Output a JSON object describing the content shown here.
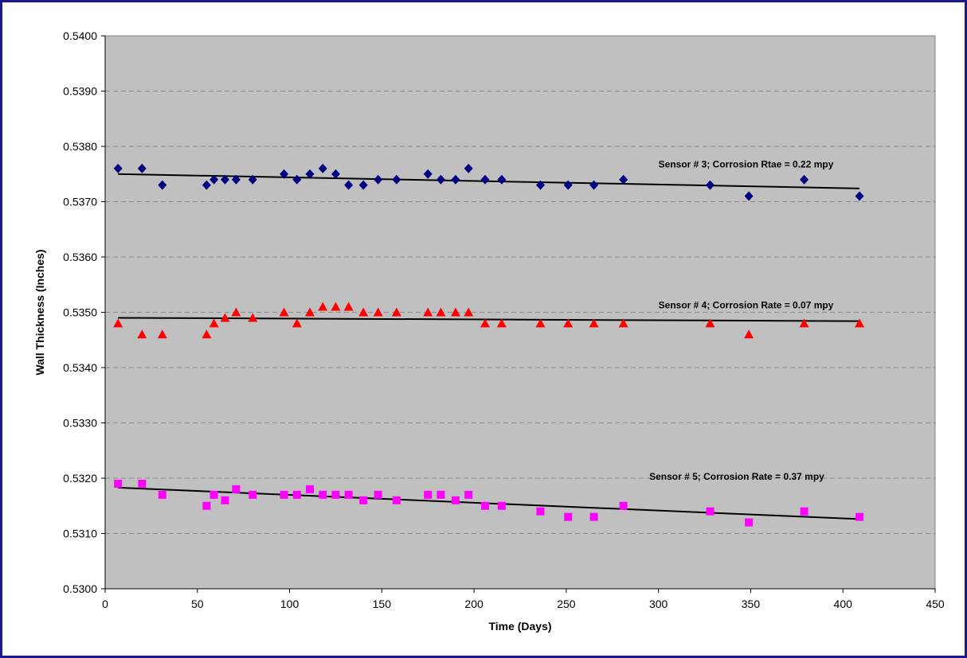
{
  "chart_data": {
    "type": "scatter",
    "title": "",
    "xlabel": "Time (Days)",
    "ylabel": "Wall Thickness (Inches)",
    "xlim": [
      0,
      450
    ],
    "ylim": [
      0.53,
      0.54
    ],
    "x_ticks": [
      "0",
      "50",
      "100",
      "150",
      "200",
      "250",
      "300",
      "350",
      "400",
      "450"
    ],
    "y_ticks": [
      "0.5300",
      "0.5310",
      "0.5320",
      "0.5330",
      "0.5340",
      "0.5350",
      "0.5360",
      "0.5370",
      "0.5380",
      "0.5390",
      "0.5400"
    ],
    "grid": "horizontal dashed",
    "legend": "none",
    "plot_background": "#c0c0c0",
    "x": [
      7,
      20,
      31,
      55,
      59,
      65,
      71,
      80,
      97,
      104,
      111,
      118,
      125,
      132,
      140,
      148,
      158,
      175,
      182,
      190,
      197,
      206,
      215,
      236,
      251,
      265,
      281,
      328,
      349,
      379,
      409
    ],
    "series": [
      {
        "label": "Sensor # 3; Corrosion Rtae = 0.22 mpy",
        "color": "#000080",
        "marker": "diamond",
        "values": [
          0.5376,
          0.5376,
          0.5373,
          0.5373,
          0.5374,
          0.5374,
          0.5374,
          0.5374,
          0.5375,
          0.5374,
          0.5375,
          0.5376,
          0.5375,
          0.5373,
          0.5373,
          0.5374,
          0.5374,
          0.5375,
          0.5374,
          0.5374,
          0.5376,
          0.5374,
          0.5374,
          0.5373,
          0.5373,
          0.5373,
          0.5374,
          0.5373,
          0.5371,
          0.5374,
          0.5371
        ],
        "trend": {
          "x": [
            7,
            409
          ],
          "y": [
            0.5375,
            0.53724
          ]
        }
      },
      {
        "label": "Sensor # 4; Corrosion Rate = 0.07 mpy",
        "color": "#ff0000",
        "marker": "triangle",
        "values": [
          0.5348,
          0.5346,
          0.5346,
          0.5346,
          0.5348,
          0.5349,
          0.535,
          0.5349,
          0.535,
          0.5348,
          0.535,
          0.5351,
          0.5351,
          0.5351,
          0.535,
          0.535,
          0.535,
          0.535,
          0.535,
          0.535,
          0.535,
          0.5348,
          0.5348,
          0.5348,
          0.5348,
          0.5348,
          0.5348,
          0.5348,
          0.5346,
          0.5348,
          0.5348
        ],
        "trend": {
          "x": [
            7,
            409
          ],
          "y": [
            0.5349,
            0.53484
          ]
        }
      },
      {
        "label": "Sensor # 5; Corrosion Rate = 0.37 mpy",
        "color": "#ff00ff",
        "marker": "square",
        "values": [
          0.5319,
          0.5319,
          0.5317,
          0.5315,
          0.5317,
          0.5316,
          0.5318,
          0.5317,
          0.5317,
          0.5317,
          0.5318,
          0.5317,
          0.5317,
          0.5317,
          0.5316,
          0.5317,
          0.5316,
          0.5317,
          0.5317,
          0.5316,
          0.5317,
          0.5315,
          0.5315,
          0.5314,
          0.5313,
          0.5313,
          0.5315,
          0.5314,
          0.5312,
          0.5314,
          0.5313
        ],
        "trend": {
          "x": [
            7,
            409
          ],
          "y": [
            0.53183,
            0.53126
          ]
        }
      }
    ]
  }
}
